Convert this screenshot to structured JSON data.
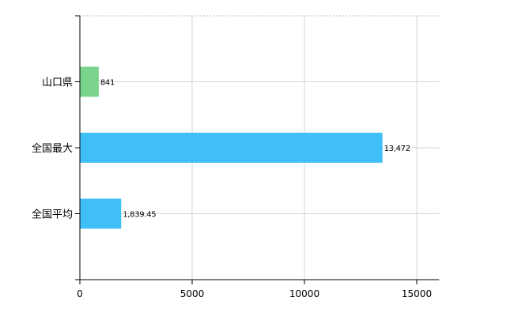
{
  "chart_data": {
    "type": "bar",
    "orientation": "horizontal",
    "categories": [
      "山口県",
      "全国最大",
      "全国平均"
    ],
    "values": [
      841,
      13472,
      1839.45
    ],
    "data_labels": [
      "841",
      "13,472",
      "1,839.45"
    ],
    "bar_colors": [
      "#7ad48c",
      "#3fbff5",
      "#3fbff5"
    ],
    "xlim": [
      0,
      16000
    ],
    "x_ticks": [
      0,
      5000,
      10000,
      15000
    ],
    "x_tick_labels": [
      "0",
      "5000",
      "10000",
      "15000"
    ],
    "grid": true,
    "legend": "none",
    "title": "",
    "xlabel": "",
    "ylabel": ""
  }
}
